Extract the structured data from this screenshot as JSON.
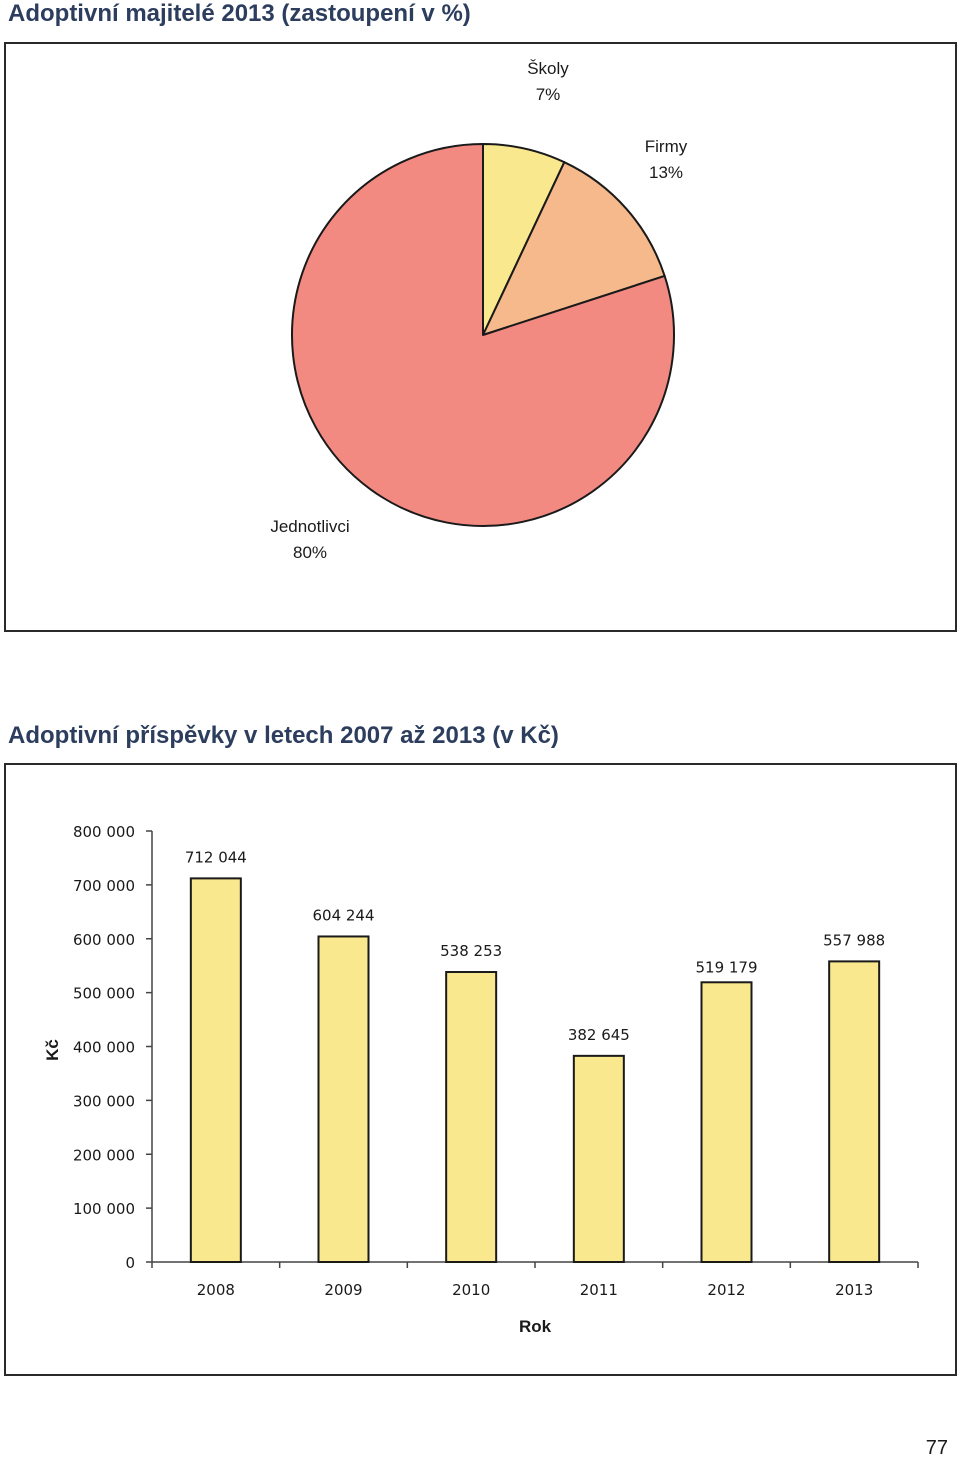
{
  "page": {
    "number": "77"
  },
  "chart_data": [
    {
      "type": "pie",
      "title": "Adoptivní majitelé 2013 (zastoupení v %)",
      "slices": [
        {
          "name": "Školy",
          "value": 7,
          "label": "7%",
          "color": "#f9e88e"
        },
        {
          "name": "Firmy",
          "value": 13,
          "label": "13%",
          "color": "#f5b98c"
        },
        {
          "name": "Jednotlivci",
          "value": 80,
          "label": "80%",
          "color": "#f28a82"
        }
      ]
    },
    {
      "type": "bar",
      "title": "Adoptivní příspěvky v letech 2007 až 2013 (v Kč)",
      "categories": [
        "2008",
        "2009",
        "2010",
        "2011",
        "2012",
        "2013"
      ],
      "values": [
        712044,
        604244,
        538253,
        382645,
        519179,
        557988
      ],
      "value_labels": [
        "712 044",
        "604 244",
        "538 253",
        "382 645",
        "519 179",
        "557 988"
      ],
      "xlabel": "Rok",
      "ylabel": "Kč",
      "ylim": [
        0,
        800000
      ],
      "yticks": [
        0,
        100000,
        200000,
        300000,
        400000,
        500000,
        600000,
        700000,
        800000
      ],
      "ytick_labels": [
        "0",
        "100 000",
        "200 000",
        "300 000",
        "400 000",
        "500 000",
        "600 000",
        "700 000",
        "800 000"
      ],
      "bar_color": "#f9e88e",
      "grid": false,
      "legend": "none"
    }
  ]
}
